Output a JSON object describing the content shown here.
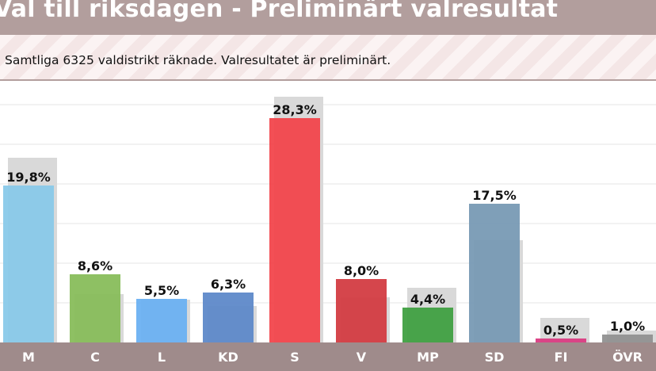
{
  "header": {
    "title": "Val till riksdagen - Preliminärt valresultat",
    "subtitle": "Samtliga 6325 valdistrikt räknade. Valresultatet är preliminärt."
  },
  "chart_data": {
    "type": "bar",
    "categories": [
      "M",
      "C",
      "L",
      "KD",
      "S",
      "V",
      "MP",
      "SD",
      "FI",
      "ÖVR"
    ],
    "series": [
      {
        "values": [
          19.8,
          8.6,
          5.5,
          6.3,
          28.3,
          8.0,
          4.4,
          17.5,
          0.5,
          1.0
        ],
        "labels": [
          "19,8%",
          "8,6%",
          "5,5%",
          "6,3%",
          "28,3%",
          "8,0%",
          "4,4%",
          "17,5%",
          "0,5%",
          "1,0%"
        ]
      },
      {
        "values": [
          23.3,
          6.1,
          5.4,
          4.6,
          31.0,
          5.7,
          6.9,
          12.9,
          3.1,
          1.5
        ]
      }
    ],
    "colors": [
      "#87c8e8",
      "#85bb57",
      "#68aff2",
      "#5a86c8",
      "#f24248",
      "#d2383e",
      "#3c9e3e",
      "#7598b3",
      "#d9387f",
      "#8f8f8f"
    ],
    "previous_color": "#d9d9d9",
    "ylim": [
      0,
      32
    ],
    "grid": true
  }
}
